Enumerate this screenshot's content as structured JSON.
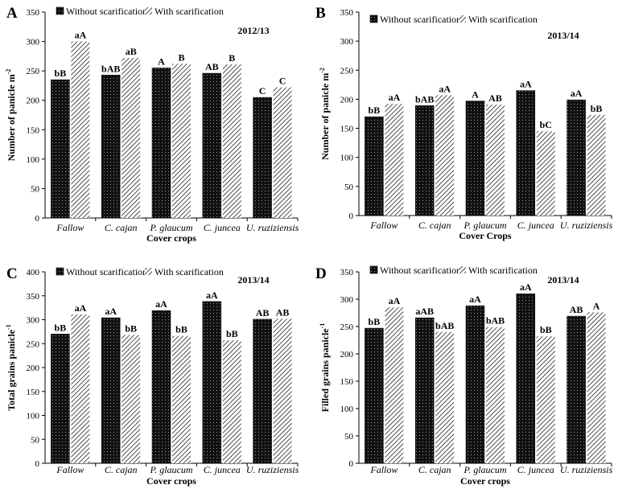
{
  "chart_data": [
    {
      "type": "bar",
      "panel_label": "A",
      "season": "2012/13",
      "xlabel": "Cover crops",
      "ylabel": "Number of panicle m",
      "ylabel_sup": "-2",
      "ylim": [
        0,
        350
      ],
      "yticks": [
        0,
        50,
        100,
        150,
        200,
        250,
        300,
        350
      ],
      "categories": [
        "Fallow",
        "C. cajan",
        "P. glaucum",
        "C. juncea",
        "U. ruziziensis"
      ],
      "series": [
        {
          "name": "Without scarification",
          "values": [
            235,
            243,
            255,
            246,
            205
          ],
          "labels": [
            "bB",
            "bAB",
            "A",
            "AB",
            "C"
          ]
        },
        {
          "name": "With scarification",
          "values": [
            300,
            272,
            262,
            261,
            222
          ],
          "labels": [
            "aA",
            "aB",
            "B",
            "B",
            "C"
          ]
        }
      ]
    },
    {
      "type": "bar",
      "panel_label": "B",
      "season": "2013/14",
      "xlabel": "Cover Crops",
      "ylabel": "Number of panicle m",
      "ylabel_sup": "-2",
      "ylim": [
        0,
        350
      ],
      "yticks": [
        0,
        50,
        100,
        150,
        200,
        250,
        300,
        350
      ],
      "categories": [
        "Fallow",
        "C. cajan",
        "P. glaucum",
        "C. juncea",
        "U. ruziziensis"
      ],
      "series": [
        {
          "name": "Without scarification",
          "values": [
            170,
            189,
            197,
            215,
            199
          ],
          "labels": [
            "bB",
            "bAB",
            "A",
            "aA",
            "aA"
          ]
        },
        {
          "name": "With scarification",
          "values": [
            192,
            207,
            191,
            145,
            173
          ],
          "labels": [
            "aA",
            "aA",
            "AB",
            "bC",
            "bB"
          ]
        }
      ]
    },
    {
      "type": "bar",
      "panel_label": "C",
      "season": "2013/14",
      "xlabel": "Cover crops",
      "ylabel": "Total grains panicle",
      "ylabel_sup": "-1",
      "ylim": [
        0,
        400
      ],
      "yticks": [
        0,
        50,
        100,
        150,
        200,
        250,
        300,
        350,
        400
      ],
      "categories": [
        "Fallow",
        "C. cajan",
        "P. glaucum",
        "C. juncea",
        "U. ruziziensis"
      ],
      "series": [
        {
          "name": "Without scarification",
          "values": [
            270,
            304,
            319,
            338,
            301
          ],
          "labels": [
            "bB",
            "aA",
            "aA",
            "aA",
            "AB"
          ]
        },
        {
          "name": "With scarification",
          "values": [
            311,
            268,
            266,
            257,
            302
          ],
          "labels": [
            "aA",
            "bB",
            "bB",
            "bB",
            "AB"
          ]
        }
      ]
    },
    {
      "type": "bar",
      "panel_label": "D",
      "season": "2013/14",
      "xlabel": "Cover crops",
      "ylabel": "Filled grains panicle",
      "ylabel_sup": "-1",
      "ylim": [
        0,
        350
      ],
      "yticks": [
        0,
        50,
        100,
        150,
        200,
        250,
        300,
        350
      ],
      "categories": [
        "Fallow",
        "C. cajan",
        "P. glaucum",
        "C. juncea",
        "U. ruziziensis"
      ],
      "series": [
        {
          "name": "Without scarification",
          "values": [
            247,
            266,
            288,
            310,
            269
          ],
          "labels": [
            "bB",
            "aAB",
            "aA",
            "aA",
            "AB"
          ]
        },
        {
          "name": "With scarification",
          "values": [
            285,
            240,
            249,
            232,
            276
          ],
          "labels": [
            "aA",
            "bAB",
            "bAB",
            "bB",
            "A"
          ]
        }
      ]
    }
  ],
  "colors": {
    "without": "#1a1a1a",
    "with_bg": "#ffffff",
    "with_hatch": "#222222",
    "axis": "#000000"
  }
}
